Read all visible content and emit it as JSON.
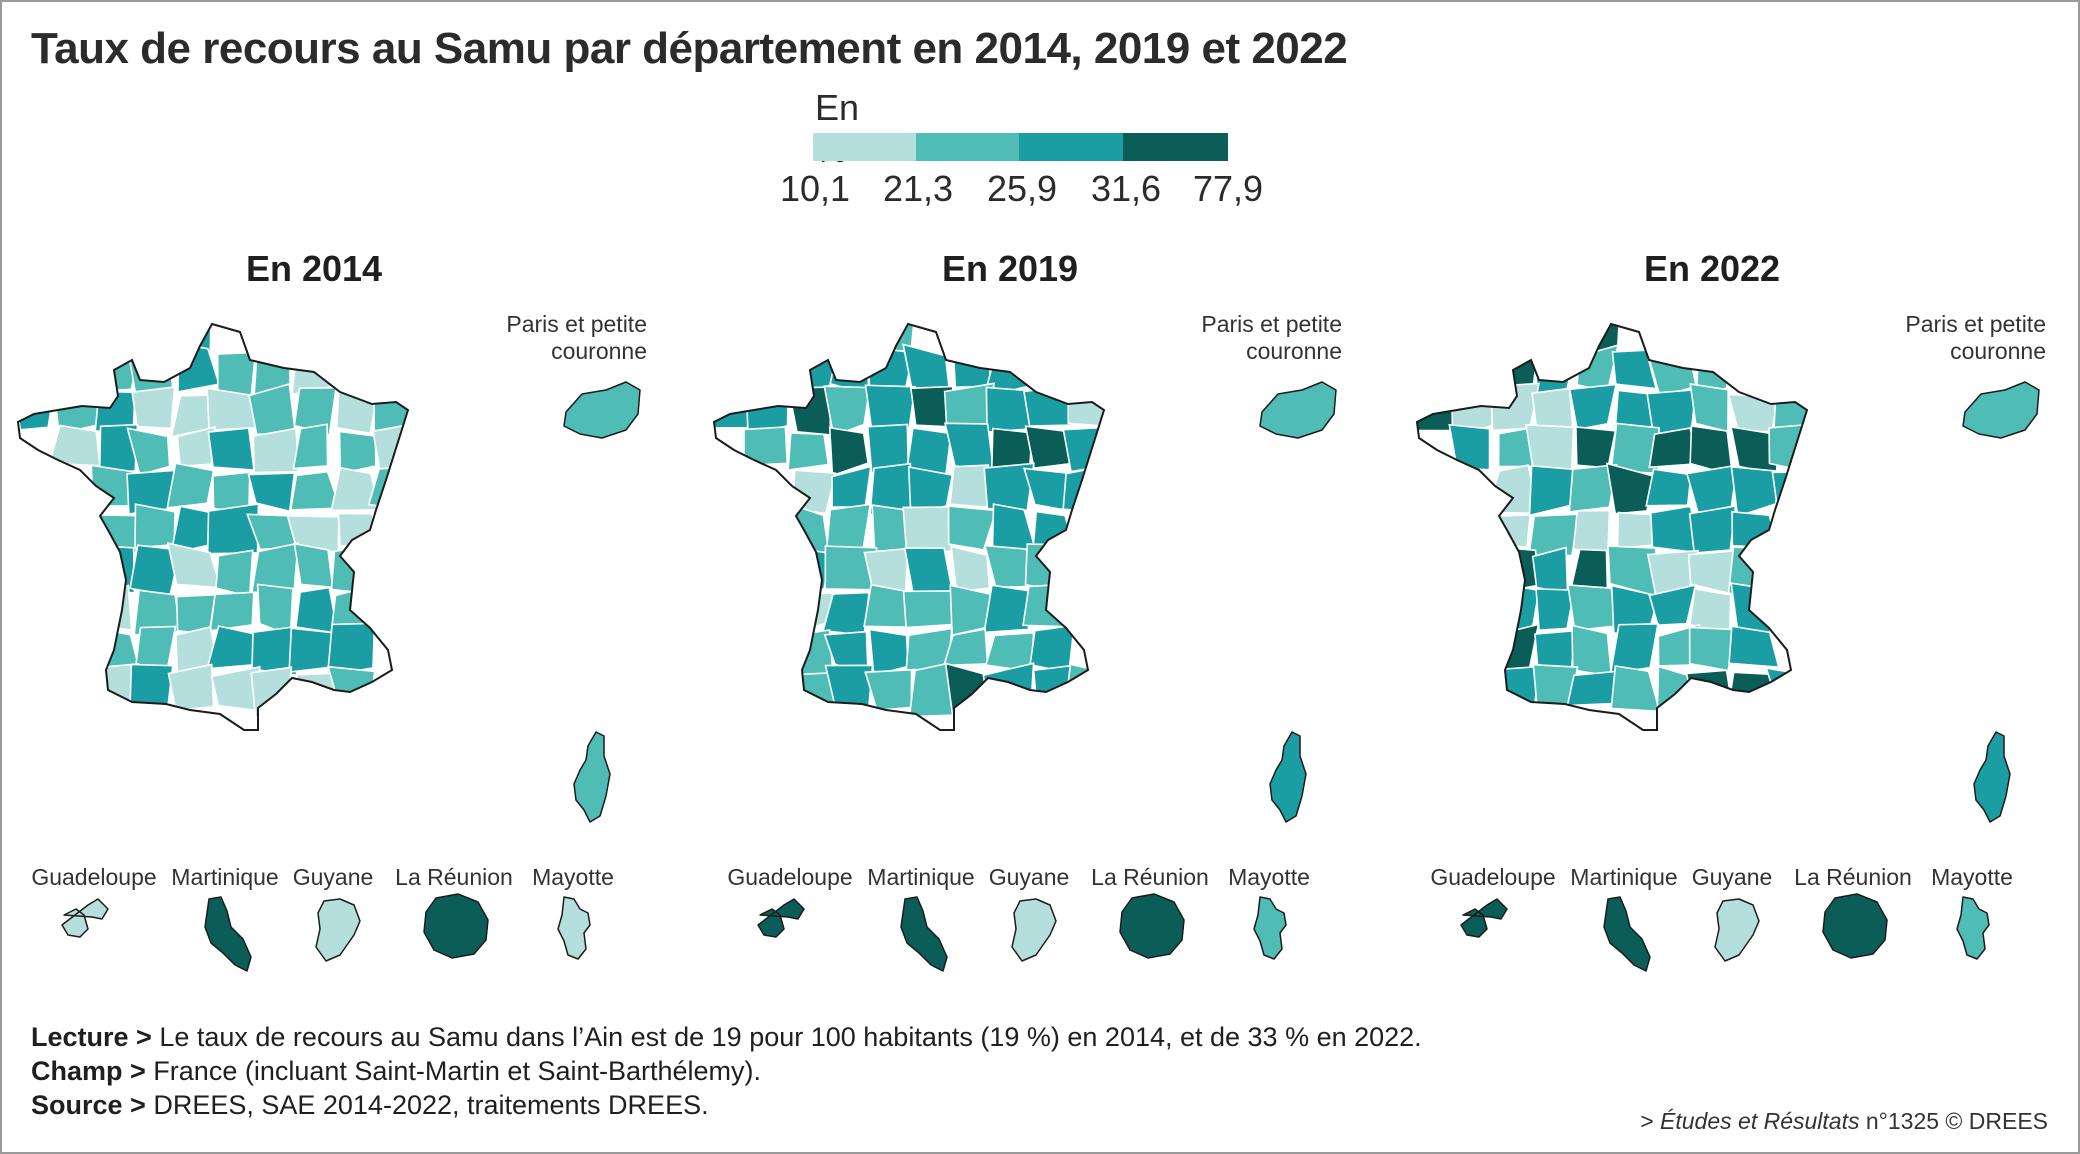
{
  "title": "Taux de recours au Samu par département en 2014, 2019 et 2022",
  "legend": {
    "unit": "En %",
    "ticks": [
      "10,1",
      "21,3",
      "25,9",
      "31,6",
      "77,9"
    ],
    "colors": [
      "#b5dfdc",
      "#4fbdb5",
      "#1a9ea3",
      "#0b5e58"
    ]
  },
  "panels": [
    {
      "title": "En 2014",
      "inset_label_1": "Paris et petite",
      "inset_label_2": "couronne",
      "dom": {
        "guadeloupe": "Guadeloupe",
        "martinique": "Martinique",
        "guyane": "Guyane",
        "reunion": "La Réunion",
        "mayotte": "Mayotte"
      },
      "dom_classes": {
        "guadeloupe": 0,
        "martinique": 3,
        "guyane": 0,
        "reunion": 3,
        "mayotte": 0
      },
      "seed": 11,
      "bias": 0.9
    },
    {
      "title": "En 2019",
      "inset_label_1": "Paris et petite",
      "inset_label_2": "couronne",
      "dom": {
        "guadeloupe": "Guadeloupe",
        "martinique": "Martinique",
        "guyane": "Guyane",
        "reunion": "La Réunion",
        "mayotte": "Mayotte"
      },
      "dom_classes": {
        "guadeloupe": 3,
        "martinique": 3,
        "guyane": 0,
        "reunion": 3,
        "mayotte": 1
      },
      "seed": 23,
      "bias": 1.6
    },
    {
      "title": "En 2022",
      "inset_label_1": "Paris et petite",
      "inset_label_2": "couronne",
      "dom": {
        "guadeloupe": "Guadeloupe",
        "martinique": "Martinique",
        "guyane": "Guyane",
        "reunion": "La Réunion",
        "mayotte": "Mayotte"
      },
      "dom_classes": {
        "guadeloupe": 3,
        "martinique": 3,
        "guyane": 0,
        "reunion": 3,
        "mayotte": 1
      },
      "seed": 37,
      "bias": 2.3
    }
  ],
  "notes": {
    "lecture_label": "Lecture >",
    "lecture": "Le taux de recours au Samu dans l’Ain est de 19 pour 100 habitants (19 %) en 2014, et de 33 % en 2022.",
    "champ_label": "Champ >",
    "champ": "France (incluant Saint-Martin et Saint-Barthélemy).",
    "source_label": "Source >",
    "source": "DREES, SAE 2014-2022, traitements DREES."
  },
  "credit": {
    "prefix": ">",
    "publication": "Études et Résultats",
    "number": "n°1325 © DREES"
  }
}
